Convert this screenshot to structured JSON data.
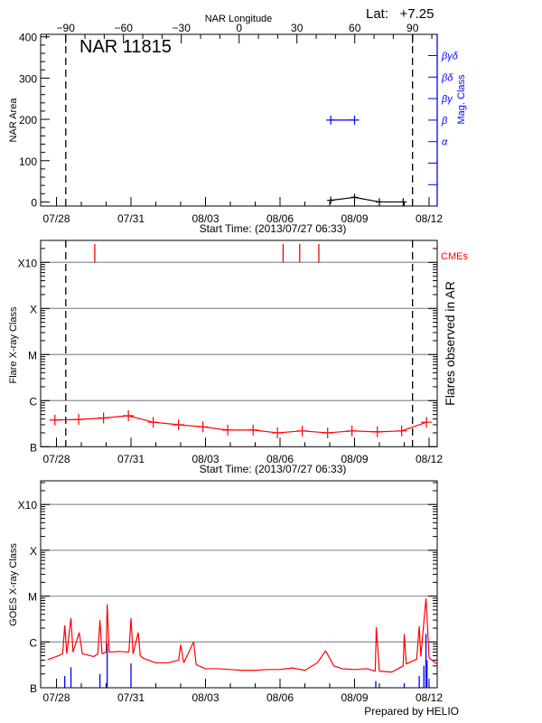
{
  "colors": {
    "axis": "#000000",
    "flare": "#ff0000",
    "mag_class": "#0000ff",
    "grid": "#999999",
    "goes_short": "#0000ff",
    "goes_long": "#ff0000"
  },
  "chart_data": [
    {
      "type": "line",
      "title": "NAR 11815",
      "top_right_label": "Lat:   +7.25",
      "top_axis_label": "NAR Longitude",
      "top_axis_ticks": [
        -90,
        -60,
        -30,
        0,
        30,
        60,
        90
      ],
      "xlabel": "Start Time: (2013/07/27 06:33)",
      "x_ticks": [
        "07/28",
        "07/31",
        "08/03",
        "08/06",
        "08/09",
        "08/12"
      ],
      "x_tick_dates": [
        "2013-07-28T00:00",
        "2013-07-31T00:00",
        "2013-08-03T00:00",
        "2013-08-06T00:00",
        "2013-08-09T00:00",
        "2013-08-12T00:00"
      ],
      "xlim": [
        "2013-07-27T15:20",
        "2013-08-12T08:00"
      ],
      "ylabel": "NAR Area",
      "ylim": [
        -10,
        406
      ],
      "y_ticks": [
        0,
        100,
        200,
        300,
        400
      ],
      "limb_markers": [
        "2013-07-28T09:00",
        "2013-08-11T08:00"
      ],
      "area_series": {
        "x": [
          "2013-08-08T01:00",
          "2013-08-09T00:00",
          "2013-08-10T00:00",
          "2013-08-10T23:00"
        ],
        "y": [
          4,
          11,
          0,
          0
        ]
      },
      "right_axis_label": "Mag. Class",
      "mag_class_ticks": [
        "",
        "",
        "α",
        "β",
        "βγ",
        "βδ",
        "βγδ"
      ],
      "mag_class_series": {
        "x": [
          "2013-08-08T01:00",
          "2013-08-09T00:00"
        ],
        "class": [
          "β",
          "β"
        ]
      }
    },
    {
      "type": "line",
      "xlabel": "Start Time: (2013/07/27 06:33)",
      "x_ticks": [
        "07/28",
        "07/31",
        "08/03",
        "08/06",
        "08/09",
        "08/12"
      ],
      "ylabel": "Flare X-ray Class",
      "right_axis_label": "Flares observed in AR",
      "y_scale": "log",
      "ylim": [
        1e-07,
        0.003
      ],
      "y_ticks": [
        {
          "label": "B",
          "value": 1e-07
        },
        {
          "label": "C",
          "value": 1e-06
        },
        {
          "label": "M",
          "value": 1e-05
        },
        {
          "label": "X",
          "value": 0.0001
        },
        {
          "label": "X10",
          "value": 0.001
        }
      ],
      "grid": true,
      "limb_markers": [
        "2013-07-28T09:00",
        "2013-08-11T08:00"
      ],
      "cme_label": "CMEs",
      "cmes": [
        "2013-07-29T13:00",
        "2013-08-06T03:00",
        "2013-08-06T19:00",
        "2013-08-07T13:30"
      ],
      "flare_series": {
        "x": [
          "2013-07-27T22:30",
          "2013-07-28T21:30",
          "2013-07-29T21:30",
          "2013-07-30T21:30",
          "2013-07-31T21:30",
          "2013-08-01T22:00",
          "2013-08-02T21:30",
          "2013-08-03T21:30",
          "2013-08-04T22:00",
          "2013-08-05T21:30",
          "2013-08-06T21:30",
          "2013-08-07T22:00",
          "2013-08-08T21:30",
          "2013-08-09T22:00",
          "2013-08-10T21:30",
          "2013-08-11T21:30"
        ],
        "y": [
          3.8e-07,
          3.9e-07,
          4.2e-07,
          4.7e-07,
          3.4e-07,
          3e-07,
          2.7e-07,
          2.3e-07,
          2.3e-07,
          2e-07,
          2.2e-07,
          2e-07,
          2.2e-07,
          2.1e-07,
          2.2e-07,
          3.4e-07
        ]
      }
    },
    {
      "type": "line",
      "x_ticks": [
        "07/28",
        "07/31",
        "08/03",
        "08/06",
        "08/09",
        "08/12"
      ],
      "ylabel": "GOES X-ray Class",
      "y_scale": "log",
      "ylim": [
        1e-07,
        0.003
      ],
      "y_ticks": [
        {
          "label": "B",
          "value": 1e-07
        },
        {
          "label": "C",
          "value": 1e-06
        },
        {
          "label": "M",
          "value": 1e-05
        },
        {
          "label": "X",
          "value": 0.0001
        },
        {
          "label": "X10",
          "value": 0.001
        }
      ],
      "grid": true,
      "footer": "Prepared by HELIO",
      "goes_long": {
        "x": [
          "2013-07-27T15:30",
          "2013-07-28T00:00",
          "2013-07-28T06:00",
          "2013-07-28T08:00",
          "2013-07-28T10:00",
          "2013-07-28T14:00",
          "2013-07-28T16:00",
          "2013-07-28T22:00",
          "2013-07-29T01:00",
          "2013-07-29T12:00",
          "2013-07-29T16:00",
          "2013-07-29T18:00",
          "2013-07-29T20:00",
          "2013-07-30T00:00",
          "2013-07-30T01:00",
          "2013-07-30T03:00",
          "2013-07-30T12:00",
          "2013-07-30T22:00",
          "2013-07-31T00:00",
          "2013-07-31T02:00",
          "2013-07-31T07:00",
          "2013-07-31T09:00",
          "2013-07-31T12:00",
          "2013-08-01T00:00",
          "2013-08-01T12:00",
          "2013-08-01T22:00",
          "2013-08-02T00:00",
          "2013-08-02T03:00",
          "2013-08-02T12:30",
          "2013-08-02T15:00",
          "2013-08-03T00:00",
          "2013-08-03T12:00",
          "2013-08-04T00:00",
          "2013-08-04T12:00",
          "2013-08-05T00:00",
          "2013-08-05T12:00",
          "2013-08-06T00:00",
          "2013-08-06T12:00",
          "2013-08-07T00:00",
          "2013-08-07T12:00",
          "2013-08-07T20:00",
          "2013-08-08T04:00",
          "2013-08-08T12:00",
          "2013-08-09T00:00",
          "2013-08-09T12:00",
          "2013-08-09T20:00",
          "2013-08-09T21:00",
          "2013-08-10T00:00",
          "2013-08-10T12:00",
          "2013-08-10T23:00",
          "2013-08-11T00:00",
          "2013-08-11T02:00",
          "2013-08-11T12:00",
          "2013-08-11T14:30",
          "2013-08-11T16:00",
          "2013-08-11T21:00",
          "2013-08-11T22:00",
          "2013-08-12T00:00",
          "2013-08-12T06:00",
          "2013-08-12T08:00"
        ],
        "y": [
          4.1e-07,
          4.8e-07,
          5.5e-07,
          2.3e-06,
          5.5e-07,
          3.3e-06,
          6e-07,
          1.6e-06,
          5.5e-07,
          4.8e-07,
          5.5e-07,
          3e-06,
          5.5e-07,
          6e-07,
          6.6e-06,
          6e-07,
          6.2e-07,
          6e-07,
          3.3e-06,
          5.5e-07,
          1.6e-06,
          5e-07,
          4.4e-07,
          3.5e-07,
          3.5e-07,
          4e-07,
          8.7e-07,
          3.5e-07,
          1e-06,
          3.2e-07,
          2.6e-07,
          2.6e-07,
          2.5e-07,
          2.4e-07,
          2.4e-07,
          2.5e-07,
          2.5e-07,
          2.7e-07,
          2.4e-07,
          3.5e-07,
          6.4e-07,
          3e-07,
          2.6e-07,
          2.5e-07,
          2.6e-07,
          2.3e-07,
          2.1e-06,
          2.3e-07,
          2.2e-07,
          3e-07,
          1.5e-06,
          3.3e-07,
          4.2e-07,
          2.2e-06,
          4.8e-07,
          8.9e-06,
          3.7e-06,
          4.5e-07,
          3.5e-07,
          3.3e-07
        ]
      },
      "goes_short": {
        "x": [
          "2013-07-28T08:00",
          "2013-07-28T14:00",
          "2013-07-29T18:00",
          "2013-07-30T01:00",
          "2013-07-31T00:00",
          "2013-08-09T20:30",
          "2013-08-11T00:00",
          "2013-08-11T14:30",
          "2013-08-11T19:00",
          "2013-08-11T21:00",
          "2013-08-11T22:00"
        ],
        "y": [
          1.8e-07,
          2.8e-07,
          2e-07,
          9.4e-07,
          3.4e-07,
          1.4e-07,
          1.25e-07,
          1.8e-07,
          3e-07,
          1.5e-06,
          4e-07
        ]
      }
    }
  ]
}
